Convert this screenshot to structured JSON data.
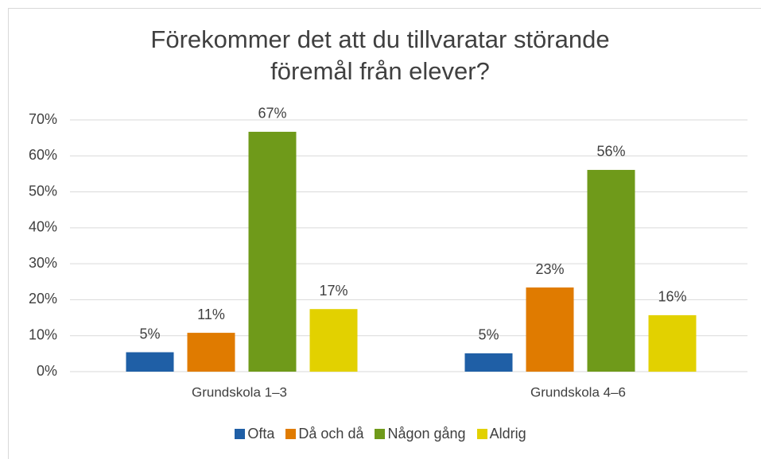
{
  "chart_data": {
    "type": "bar",
    "title": "Förekommer det att du tillvaratar störande föremål från elever?",
    "categories": [
      "Grundskola 1–3",
      "Grundskola 4–6"
    ],
    "series": [
      {
        "name": "Ofta",
        "color": "#1f5fa6",
        "values": [
          5.4,
          5.1
        ],
        "value_labels": [
          "5%",
          "5%"
        ]
      },
      {
        "name": "Då och då",
        "color": "#e07b00",
        "values": [
          10.8,
          23.4
        ],
        "value_labels": [
          "11%",
          "23%"
        ]
      },
      {
        "name": "Någon gång",
        "color": "#6f9a1a",
        "values": [
          66.7,
          56.1
        ],
        "value_labels": [
          "67%",
          "56%"
        ]
      },
      {
        "name": "Aldrig",
        "color": "#e2d100",
        "values": [
          17.4,
          15.7
        ],
        "value_labels": [
          "17%",
          "16%"
        ]
      }
    ],
    "ylim": [
      0,
      70
    ],
    "yticks": [
      {
        "value": 0,
        "label": "0%"
      },
      {
        "value": 10,
        "label": "10%"
      },
      {
        "value": 20,
        "label": "20%"
      },
      {
        "value": 30,
        "label": "30%"
      },
      {
        "value": 40,
        "label": "40%"
      },
      {
        "value": 50,
        "label": "50%"
      },
      {
        "value": 60,
        "label": "60%"
      },
      {
        "value": 70,
        "label": "70%"
      }
    ],
    "grid": true,
    "legend": "bottom"
  }
}
